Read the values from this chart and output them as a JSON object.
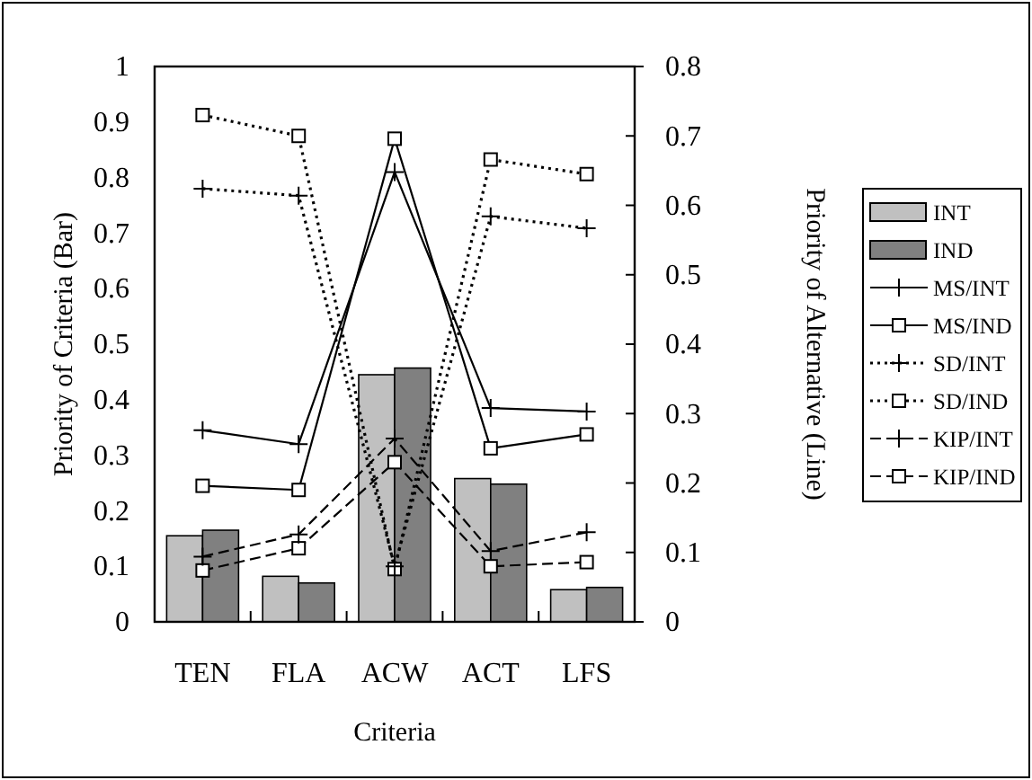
{
  "chart_data": {
    "type": "bar",
    "xlabel": "Criteria",
    "ylabel": "Priority of Criteria (Bar)",
    "y2label": "Priority of Alternative (Line)",
    "categories": [
      "TEN",
      "FLA",
      "ACW",
      "ACT",
      "LFS"
    ],
    "series": [
      {
        "name": "INT",
        "color": "#c0c0c0",
        "values": [
          0.155,
          0.082,
          0.445,
          0.258,
          0.058
        ]
      },
      {
        "name": "IND",
        "color": "#808080",
        "values": [
          0.165,
          0.07,
          0.457,
          0.248,
          0.062
        ]
      },
      {
        "name": "MS/INT",
        "type": "line",
        "axis": "y2",
        "color": "#000000",
        "marker": "cross",
        "line_style": "solid",
        "values": [
          0.276,
          0.256,
          0.648,
          0.308,
          0.303
        ]
      },
      {
        "name": "MS/IND",
        "type": "line",
        "axis": "y2",
        "color": "#000000",
        "marker": "square",
        "line_style": "solid",
        "values": [
          0.196,
          0.19,
          0.696,
          0.25,
          0.27
        ]
      },
      {
        "name": "SD/INT",
        "type": "line",
        "axis": "y2",
        "color": "#000000",
        "marker": "cross",
        "line_style": "dotted",
        "values": [
          0.624,
          0.614,
          0.08,
          0.584,
          0.567
        ]
      },
      {
        "name": "SD/IND",
        "type": "line",
        "axis": "y2",
        "color": "#000000",
        "marker": "square",
        "line_style": "dotted",
        "values": [
          0.73,
          0.7,
          0.076,
          0.666,
          0.645
        ]
      },
      {
        "name": "KIP/INT",
        "type": "line",
        "axis": "y2",
        "color": "#000000",
        "marker": "cross",
        "line_style": "dashed",
        "values": [
          0.094,
          0.126,
          0.264,
          0.102,
          0.129
        ]
      },
      {
        "name": "KIP/IND",
        "type": "line",
        "axis": "y2",
        "color": "#000000",
        "marker": "square",
        "line_style": "dashed",
        "values": [
          0.074,
          0.106,
          0.23,
          0.08,
          0.086
        ]
      }
    ],
    "ylim": [
      0,
      1
    ],
    "yticks": [
      0,
      0.1,
      0.2,
      0.3,
      0.4,
      0.5,
      0.6,
      0.7,
      0.8,
      0.9,
      1
    ],
    "y2lim": [
      0,
      0.8
    ],
    "y2ticks": [
      0,
      0.1,
      0.2,
      0.3,
      0.4,
      0.5,
      0.6,
      0.7,
      0.8
    ],
    "legend": "right",
    "grid": false
  }
}
